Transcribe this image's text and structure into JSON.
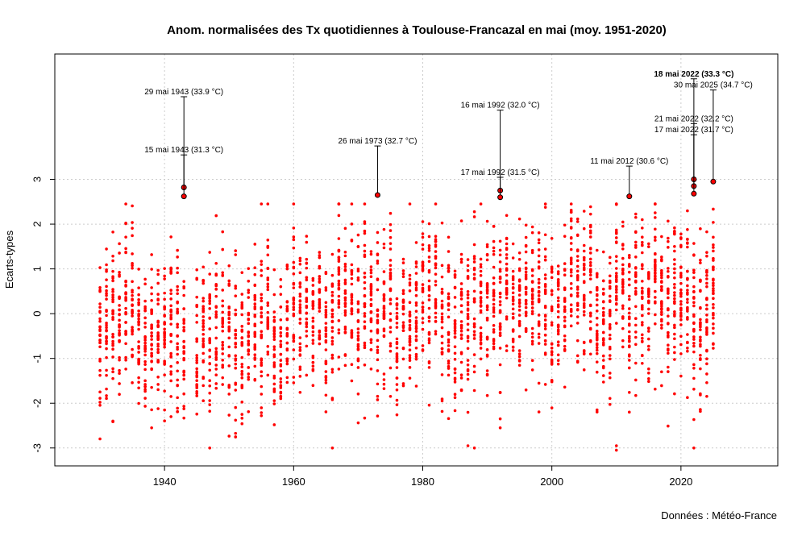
{
  "chart_data": {
    "type": "scatter",
    "title": "Anom. normalisées des Tx quotidiennes à Toulouse-Francazal en mai (moy. 1951-2020)",
    "xlabel": "",
    "ylabel": "Ecarts-types",
    "source": "Données : Météo-France",
    "xlim": [
      1923,
      2035
    ],
    "ylim": [
      -3.4,
      5.8
    ],
    "x_ticks": [
      1940,
      1960,
      1980,
      2000,
      2020
    ],
    "y_ticks": [
      -3,
      -2,
      -1,
      0,
      1,
      2,
      3
    ],
    "grid": true,
    "colors": {
      "points": "#ff0000",
      "highlight_outline": "#000000",
      "grid": "#cccccc"
    },
    "series": [
      {
        "x_range": [
          1930,
          2025
        ],
        "days_per_year": 31,
        "y_range": [
          -3.0,
          3.0
        ]
      }
    ],
    "annotations": [
      {
        "year": 1943,
        "y": 2.82,
        "label_y": 4.9,
        "label": "29 mai 1943 (33.9 °C)",
        "bold": false
      },
      {
        "year": 1943,
        "y": 2.62,
        "label_y": 3.6,
        "label": "15 mai 1943 (31.3 °C)",
        "bold": false
      },
      {
        "year": 1973,
        "y": 2.65,
        "label_y": 3.8,
        "label": "26 mai 1973 (32.7 °C)",
        "bold": false
      },
      {
        "year": 1992,
        "y": 2.75,
        "label_y": 4.6,
        "label": "16 mai 1992 (32.0 °C)",
        "bold": false
      },
      {
        "year": 1992,
        "y": 2.6,
        "label_y": 3.1,
        "label": "17 mai 1992 (31.5 °C)",
        "bold": false
      },
      {
        "year": 2012,
        "y": 2.62,
        "label_y": 3.35,
        "label": "11 mai 2012 (30.6 °C)",
        "bold": false
      },
      {
        "year": 2022,
        "y": 3.0,
        "label_y": 5.3,
        "label": "18 mai 2022 (33.3 °C)",
        "bold": true
      },
      {
        "year": 2025,
        "y": 2.95,
        "label_y": 5.05,
        "label": "30 mai 2025 (34.7 °C)",
        "bold": false
      },
      {
        "year": 2022,
        "y": 2.85,
        "label_y": 4.3,
        "label": "21 mai 2022 (32.2 °C)",
        "bold": false
      },
      {
        "year": 2022,
        "y": 2.68,
        "label_y": 4.05,
        "label": "17 mai 2022 (31.7 °C)",
        "bold": false
      }
    ],
    "extra_points": [
      {
        "x": 1987,
        "y": -2.95
      },
      {
        "x": 2010,
        "y": -2.95
      },
      {
        "x": 2010,
        "y": -3.05
      },
      {
        "x": 1951,
        "y": -2.75
      },
      {
        "x": 1938,
        "y": -2.55
      },
      {
        "x": 1941,
        "y": -2.3
      },
      {
        "x": 1932,
        "y": -2.4
      },
      {
        "x": 2012,
        "y": -2.2
      },
      {
        "x": 1992,
        "y": -2.55
      },
      {
        "x": 1992,
        "y": -2.35
      }
    ]
  }
}
